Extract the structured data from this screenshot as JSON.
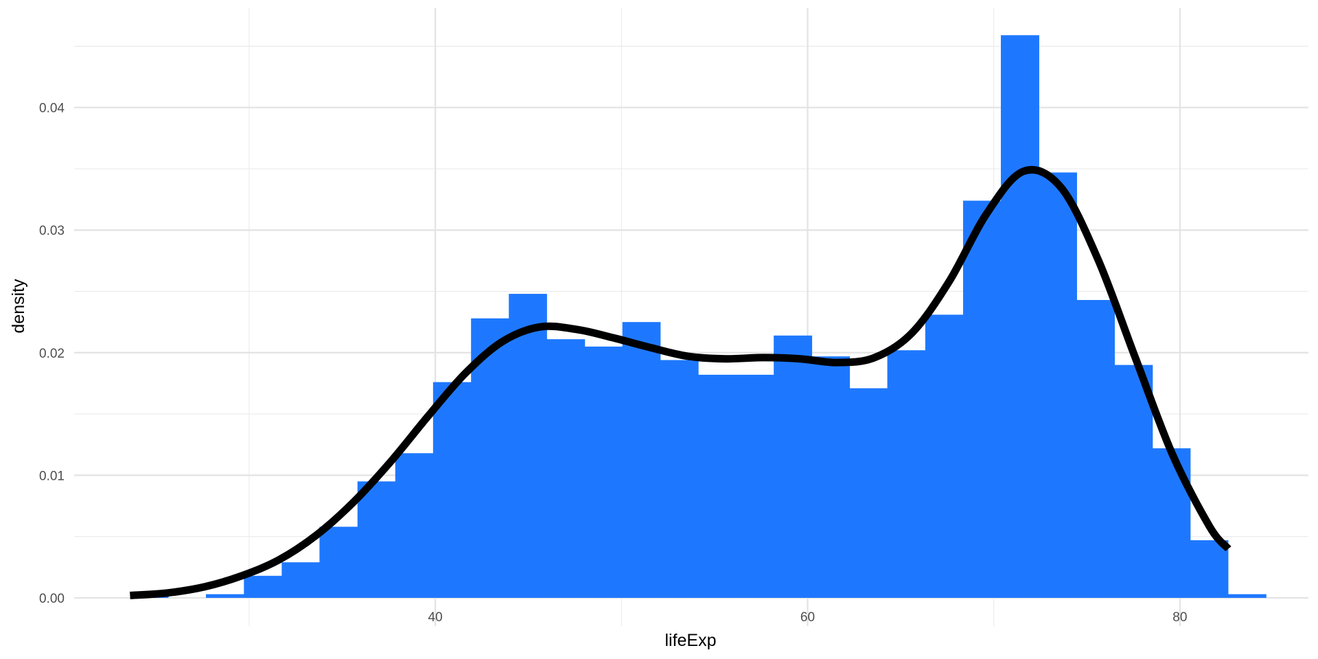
{
  "chart_data": {
    "type": "bar",
    "subtype": "histogram-with-density",
    "xlabel": "lifeExp",
    "ylabel": "density",
    "xlim": [
      20.6,
      86.9
    ],
    "ylim": [
      -0.0023,
      0.0481
    ],
    "x_ticks": [
      40,
      60,
      80
    ],
    "x_tick_labels": [
      "40",
      "60",
      "80"
    ],
    "x_minor_ticks": [
      30,
      50,
      70
    ],
    "y_ticks": [
      0.0,
      0.01,
      0.02,
      0.03,
      0.04
    ],
    "y_tick_labels": [
      "0.00",
      "0.01",
      "0.02",
      "0.03",
      "0.04"
    ],
    "y_minor_ticks": [
      0.005,
      0.015,
      0.025,
      0.035,
      0.045
    ],
    "grid": true,
    "bar_color": "#1e78ff",
    "line_color": "#000000",
    "bins": [
      {
        "x0": 23.62,
        "x1": 25.65,
        "density": 0.0003
      },
      {
        "x0": 25.65,
        "x1": 27.68,
        "density": 0.0
      },
      {
        "x0": 27.68,
        "x1": 29.72,
        "density": 0.0003
      },
      {
        "x0": 29.72,
        "x1": 31.75,
        "density": 0.0018
      },
      {
        "x0": 31.75,
        "x1": 33.78,
        "density": 0.0029
      },
      {
        "x0": 33.78,
        "x1": 35.82,
        "density": 0.0058
      },
      {
        "x0": 35.82,
        "x1": 37.85,
        "density": 0.0095
      },
      {
        "x0": 37.85,
        "x1": 39.88,
        "density": 0.0118
      },
      {
        "x0": 39.88,
        "x1": 41.92,
        "density": 0.0176
      },
      {
        "x0": 41.92,
        "x1": 43.95,
        "density": 0.0228
      },
      {
        "x0": 43.95,
        "x1": 45.98,
        "density": 0.0248
      },
      {
        "x0": 45.98,
        "x1": 48.02,
        "density": 0.0211
      },
      {
        "x0": 48.02,
        "x1": 50.05,
        "density": 0.0205
      },
      {
        "x0": 50.05,
        "x1": 52.08,
        "density": 0.0225
      },
      {
        "x0": 52.08,
        "x1": 54.12,
        "density": 0.0194
      },
      {
        "x0": 54.12,
        "x1": 56.15,
        "density": 0.0182
      },
      {
        "x0": 56.15,
        "x1": 58.18,
        "density": 0.0182
      },
      {
        "x0": 58.18,
        "x1": 60.22,
        "density": 0.0214
      },
      {
        "x0": 60.22,
        "x1": 62.25,
        "density": 0.0197
      },
      {
        "x0": 62.25,
        "x1": 64.28,
        "density": 0.0171
      },
      {
        "x0": 64.28,
        "x1": 66.32,
        "density": 0.0202
      },
      {
        "x0": 66.32,
        "x1": 68.35,
        "density": 0.0231
      },
      {
        "x0": 68.35,
        "x1": 70.38,
        "density": 0.0324
      },
      {
        "x0": 70.38,
        "x1": 72.42,
        "density": 0.0459
      },
      {
        "x0": 72.42,
        "x1": 74.45,
        "density": 0.0347
      },
      {
        "x0": 74.45,
        "x1": 76.48,
        "density": 0.0243
      },
      {
        "x0": 76.48,
        "x1": 78.52,
        "density": 0.019
      },
      {
        "x0": 78.52,
        "x1": 80.55,
        "density": 0.0122
      },
      {
        "x0": 80.55,
        "x1": 82.58,
        "density": 0.0047
      },
      {
        "x0": 82.58,
        "x1": 84.62,
        "density": 0.0003
      }
    ],
    "density_curve": [
      {
        "x": 23.6,
        "y": 0.0002
      },
      {
        "x": 25.6,
        "y": 0.0004
      },
      {
        "x": 27.6,
        "y": 0.0009
      },
      {
        "x": 29.6,
        "y": 0.0018
      },
      {
        "x": 31.6,
        "y": 0.0031
      },
      {
        "x": 33.6,
        "y": 0.0051
      },
      {
        "x": 35.6,
        "y": 0.0078
      },
      {
        "x": 37.6,
        "y": 0.0111
      },
      {
        "x": 39.6,
        "y": 0.0148
      },
      {
        "x": 41.6,
        "y": 0.0183
      },
      {
        "x": 43.6,
        "y": 0.0209
      },
      {
        "x": 45.6,
        "y": 0.0221
      },
      {
        "x": 47.6,
        "y": 0.0219
      },
      {
        "x": 49.6,
        "y": 0.0212
      },
      {
        "x": 51.6,
        "y": 0.0204
      },
      {
        "x": 53.6,
        "y": 0.0197
      },
      {
        "x": 55.6,
        "y": 0.0195
      },
      {
        "x": 57.6,
        "y": 0.0196
      },
      {
        "x": 59.6,
        "y": 0.0195
      },
      {
        "x": 61.6,
        "y": 0.0192
      },
      {
        "x": 63.6,
        "y": 0.0196
      },
      {
        "x": 65.6,
        "y": 0.0216
      },
      {
        "x": 67.6,
        "y": 0.0258
      },
      {
        "x": 69.6,
        "y": 0.0313
      },
      {
        "x": 71.6,
        "y": 0.0348
      },
      {
        "x": 73.6,
        "y": 0.0335
      },
      {
        "x": 75.6,
        "y": 0.0276
      },
      {
        "x": 77.6,
        "y": 0.0196
      },
      {
        "x": 79.6,
        "y": 0.0117
      },
      {
        "x": 81.6,
        "y": 0.0058
      },
      {
        "x": 82.6,
        "y": 0.004
      }
    ]
  }
}
